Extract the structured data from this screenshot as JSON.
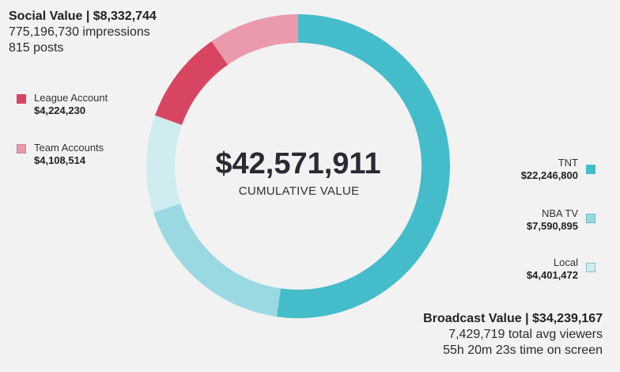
{
  "chart_data": {
    "type": "pie",
    "variant": "donut",
    "total_label": "$42,571,911",
    "total_caption": "CUMULATIVE VALUE",
    "slices": [
      {
        "name": "TNT",
        "value": 22246800,
        "value_label": "$22,246,800",
        "color": "#45bcca",
        "group": "broadcast"
      },
      {
        "name": "NBA TV",
        "value": 7590895,
        "value_label": "$7,590,895",
        "color": "#9ad9e1",
        "group": "broadcast"
      },
      {
        "name": "Local",
        "value": 4401472,
        "value_label": "$4,401,472",
        "color": "#cfecf0",
        "group": "broadcast"
      },
      {
        "name": "League Account",
        "value": 4224230,
        "value_label": "$4,224,230",
        "color": "#d84563",
        "group": "social"
      },
      {
        "name": "Team Accounts",
        "value": 4108514,
        "value_label": "$4,108,514",
        "color": "#ea9aab",
        "group": "social"
      }
    ]
  },
  "social": {
    "title": "Social Value | $8,332,744",
    "impressions": "775,196,730 impressions",
    "posts": "815 posts"
  },
  "broadcast": {
    "title": "Broadcast Value | $34,239,167",
    "viewers": "7,429,719 total avg viewers",
    "time": "55h 20m 23s time on screen"
  }
}
